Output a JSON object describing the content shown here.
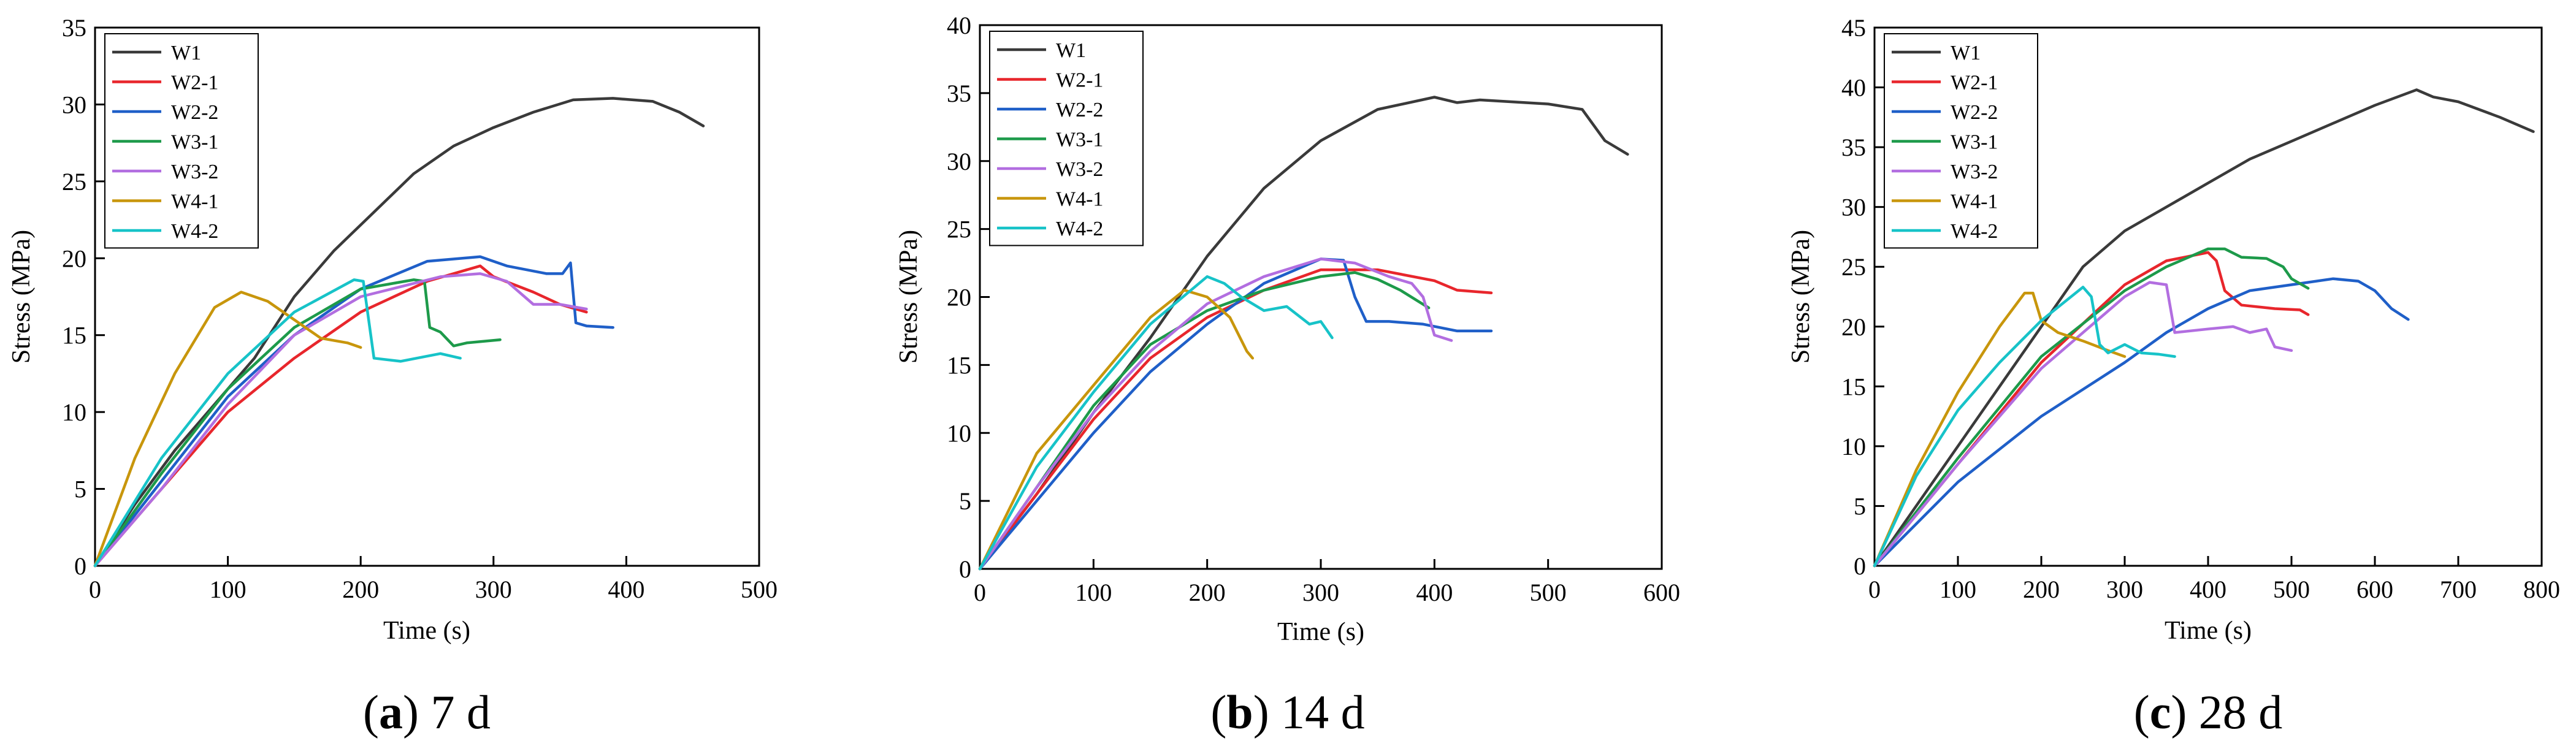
{
  "figure": {
    "panels": [
      {
        "caption_letter": "a",
        "caption_rest": ") 7 d"
      },
      {
        "caption_letter": "b",
        "caption_rest": ") 14 d"
      },
      {
        "caption_letter": "c",
        "caption_rest": ") 28 d"
      }
    ]
  },
  "colors": {
    "W1": "#3a3a3a",
    "W2-1": "#e8262c",
    "W2-2": "#1f5fc8",
    "W3-1": "#1d9a4a",
    "W3-2": "#b26ee0",
    "W4-1": "#c8960c",
    "W4-2": "#17c3c8"
  },
  "chart_data": [
    {
      "type": "line",
      "title": "(a) 7 d",
      "xlabel": "Time (s)",
      "ylabel": "Stress (MPa)",
      "xlim": [
        0,
        500
      ],
      "ylim": [
        0,
        35
      ],
      "xticks": [
        0,
        100,
        200,
        300,
        400,
        500
      ],
      "yticks": [
        0,
        5,
        10,
        15,
        20,
        25,
        30,
        35
      ],
      "legend": "top-left",
      "series": [
        {
          "name": "W1",
          "x": [
            0,
            30,
            60,
            90,
            120,
            150,
            180,
            210,
            240,
            270,
            300,
            330,
            360,
            390,
            420,
            440,
            458
          ],
          "y": [
            0,
            4,
            7.5,
            10.5,
            13.5,
            17.5,
            20.5,
            23,
            25.5,
            27.3,
            28.5,
            29.5,
            30.3,
            30.4,
            30.2,
            29.5,
            28.6
          ]
        },
        {
          "name": "W2-1",
          "x": [
            0,
            50,
            100,
            150,
            200,
            250,
            290,
            300,
            330,
            350,
            370
          ],
          "y": [
            0,
            5,
            10,
            13.5,
            16.5,
            18.5,
            19.5,
            18.8,
            17.8,
            17,
            16.5
          ]
        },
        {
          "name": "W2-2",
          "x": [
            0,
            50,
            100,
            150,
            200,
            250,
            290,
            310,
            340,
            352,
            358,
            362,
            370,
            390
          ],
          "y": [
            0,
            5.5,
            11,
            15,
            18,
            19.8,
            20.1,
            19.5,
            19,
            19,
            19.7,
            15.8,
            15.6,
            15.5
          ]
        },
        {
          "name": "W3-1",
          "x": [
            0,
            50,
            100,
            150,
            200,
            240,
            248,
            252,
            260,
            270,
            280,
            305
          ],
          "y": [
            0,
            6,
            11.5,
            15.5,
            18,
            18.6,
            18.5,
            15.5,
            15.2,
            14.3,
            14.5,
            14.7
          ]
        },
        {
          "name": "W3-2",
          "x": [
            0,
            50,
            100,
            150,
            200,
            260,
            290,
            310,
            330,
            350,
            370
          ],
          "y": [
            0,
            5,
            10.5,
            15,
            17.5,
            18.8,
            19,
            18.5,
            17,
            17,
            16.7
          ]
        },
        {
          "name": "W4-1",
          "x": [
            0,
            30,
            60,
            90,
            110,
            130,
            150,
            170,
            190,
            200
          ],
          "y": [
            0,
            7,
            12.5,
            16.8,
            17.8,
            17.2,
            16,
            14.8,
            14.5,
            14.2
          ]
        },
        {
          "name": "W4-2",
          "x": [
            0,
            50,
            100,
            150,
            195,
            202,
            210,
            230,
            260,
            275
          ],
          "y": [
            0,
            7,
            12.5,
            16.5,
            18.6,
            18.5,
            13.5,
            13.3,
            13.8,
            13.5
          ]
        }
      ]
    },
    {
      "type": "line",
      "title": "(b) 14 d",
      "xlabel": "Time (s)",
      "ylabel": "Stress (MPa)",
      "xlim": [
        0,
        600
      ],
      "ylim": [
        0,
        40
      ],
      "xticks": [
        0,
        100,
        200,
        300,
        400,
        500,
        600
      ],
      "yticks": [
        0,
        5,
        10,
        15,
        20,
        25,
        30,
        35,
        40
      ],
      "legend": "top-left",
      "series": [
        {
          "name": "W1",
          "x": [
            0,
            50,
            100,
            150,
            200,
            250,
            300,
            350,
            400,
            420,
            440,
            500,
            530,
            550,
            570
          ],
          "y": [
            0,
            5.5,
            11.5,
            17,
            23,
            28,
            31.5,
            33.8,
            34.7,
            34.3,
            34.5,
            34.2,
            33.8,
            31.5,
            30.5
          ]
        },
        {
          "name": "W2-1",
          "x": [
            0,
            50,
            100,
            150,
            200,
            250,
            300,
            350,
            400,
            420,
            450
          ],
          "y": [
            0,
            5.5,
            11,
            15.5,
            18.5,
            20.5,
            22,
            22,
            21.2,
            20.5,
            20.3
          ]
        },
        {
          "name": "W2-2",
          "x": [
            0,
            50,
            100,
            150,
            200,
            250,
            300,
            320,
            330,
            340,
            360,
            390,
            420,
            440,
            450
          ],
          "y": [
            0,
            5,
            10,
            14.5,
            18,
            21,
            22.8,
            22.7,
            20,
            18.2,
            18.2,
            18,
            17.5,
            17.5,
            17.5
          ]
        },
        {
          "name": "W3-1",
          "x": [
            0,
            50,
            100,
            150,
            200,
            250,
            300,
            330,
            350,
            370,
            395
          ],
          "y": [
            0,
            6,
            12,
            16.5,
            19,
            20.5,
            21.5,
            21.8,
            21.3,
            20.5,
            19.2
          ]
        },
        {
          "name": "W3-2",
          "x": [
            0,
            50,
            100,
            150,
            200,
            250,
            300,
            330,
            360,
            380,
            390,
            400,
            415
          ],
          "y": [
            0,
            6,
            11.5,
            16,
            19.5,
            21.5,
            22.8,
            22.5,
            21.5,
            21,
            20,
            17.2,
            16.8
          ]
        },
        {
          "name": "W4-1",
          "x": [
            0,
            50,
            100,
            150,
            180,
            200,
            220,
            235,
            240
          ],
          "y": [
            0,
            8.5,
            13.5,
            18.5,
            20.5,
            20,
            18.5,
            16,
            15.5
          ]
        },
        {
          "name": "W4-2",
          "x": [
            0,
            50,
            100,
            150,
            200,
            215,
            230,
            250,
            270,
            290,
            300,
            310
          ],
          "y": [
            0,
            7.5,
            13,
            18,
            21.5,
            21,
            20,
            19,
            19.3,
            18,
            18.2,
            17
          ]
        }
      ]
    },
    {
      "type": "line",
      "title": "(c) 28 d",
      "xlabel": "Time (s)",
      "ylabel": "Stress (MPa)",
      "xlim": [
        0,
        800
      ],
      "ylim": [
        0,
        45
      ],
      "xticks": [
        0,
        100,
        200,
        300,
        400,
        500,
        600,
        700,
        800
      ],
      "yticks": [
        0,
        5,
        10,
        15,
        20,
        25,
        30,
        35,
        40,
        45
      ],
      "legend": "top-left",
      "series": [
        {
          "name": "W1",
          "x": [
            0,
            50,
            100,
            150,
            200,
            250,
            300,
            350,
            400,
            450,
            500,
            550,
            600,
            650,
            670,
            700,
            750,
            790
          ],
          "y": [
            0,
            5,
            10,
            15,
            20,
            25,
            28,
            30,
            32,
            34,
            35.5,
            37,
            38.5,
            39.8,
            39.2,
            38.8,
            37.5,
            36.3
          ]
        },
        {
          "name": "W2-1",
          "x": [
            0,
            100,
            200,
            300,
            350,
            400,
            410,
            420,
            440,
            480,
            510,
            520
          ],
          "y": [
            0,
            8.5,
            17,
            23.5,
            25.5,
            26.2,
            25.5,
            23,
            21.8,
            21.5,
            21.4,
            21
          ]
        },
        {
          "name": "W2-2",
          "x": [
            0,
            100,
            200,
            300,
            350,
            400,
            450,
            500,
            550,
            580,
            600,
            620,
            640
          ],
          "y": [
            0,
            7,
            12.5,
            17,
            19.5,
            21.5,
            23,
            23.5,
            24,
            23.8,
            23,
            21.5,
            20.6
          ]
        },
        {
          "name": "W3-1",
          "x": [
            0,
            100,
            200,
            300,
            350,
            400,
            420,
            440,
            470,
            490,
            500,
            520
          ],
          "y": [
            0,
            9,
            17.5,
            23,
            25,
            26.5,
            26.5,
            25.8,
            25.7,
            25,
            24,
            23.2
          ]
        },
        {
          "name": "W3-2",
          "x": [
            0,
            100,
            200,
            300,
            330,
            350,
            360,
            400,
            430,
            450,
            470,
            480,
            500
          ],
          "y": [
            0,
            8.5,
            16.5,
            22.5,
            23.7,
            23.5,
            19.5,
            19.8,
            20,
            19.5,
            19.8,
            18.3,
            18
          ]
        },
        {
          "name": "W4-1",
          "x": [
            0,
            50,
            100,
            150,
            180,
            190,
            200,
            220,
            250,
            280,
            300
          ],
          "y": [
            0,
            8,
            14.5,
            20,
            22.8,
            22.8,
            20.5,
            19.5,
            18.8,
            18,
            17.5
          ]
        },
        {
          "name": "W4-2",
          "x": [
            0,
            50,
            100,
            150,
            200,
            250,
            260,
            270,
            280,
            300,
            320,
            340,
            360
          ],
          "y": [
            0,
            7.5,
            13,
            17,
            20.5,
            23.3,
            22.5,
            18.5,
            17.8,
            18.5,
            17.8,
            17.7,
            17.5
          ]
        }
      ]
    }
  ]
}
